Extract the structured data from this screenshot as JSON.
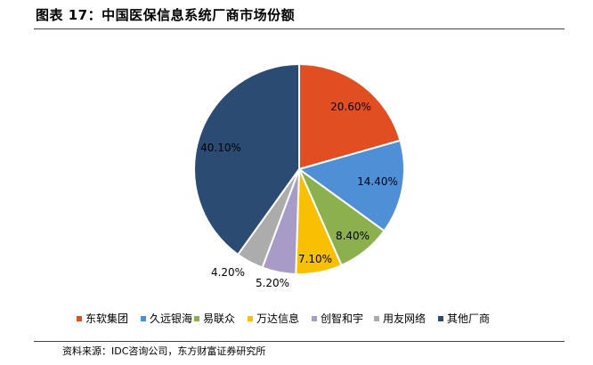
{
  "header": {
    "title": "图表 17：中国医保信息系统厂商市场份额"
  },
  "footer": {
    "source": "资料来源：IDC咨询公司，东方财富证券研究所"
  },
  "chart_data": {
    "type": "pie",
    "slices": [
      {
        "label": "东软集团",
        "value": 20.6,
        "display": "20.60%",
        "color": "#E04E22"
      },
      {
        "label": "久远银海",
        "value": 14.4,
        "display": "14.40%",
        "color": "#4F8FD6"
      },
      {
        "label": "易联众",
        "value": 8.4,
        "display": "8.40%",
        "color": "#8DB04E"
      },
      {
        "label": "万达信息",
        "value": 7.1,
        "display": "7.10%",
        "color": "#F8C000"
      },
      {
        "label": "创智和宇",
        "value": 5.2,
        "display": "5.20%",
        "color": "#A99BC8"
      },
      {
        "label": "用友网络",
        "value": 4.2,
        "display": "4.20%",
        "color": "#ACACAC"
      },
      {
        "label": "其他厂商",
        "value": 40.1,
        "display": "40.10%",
        "color": "#2B4B72"
      }
    ],
    "legend_position": "bottom"
  }
}
